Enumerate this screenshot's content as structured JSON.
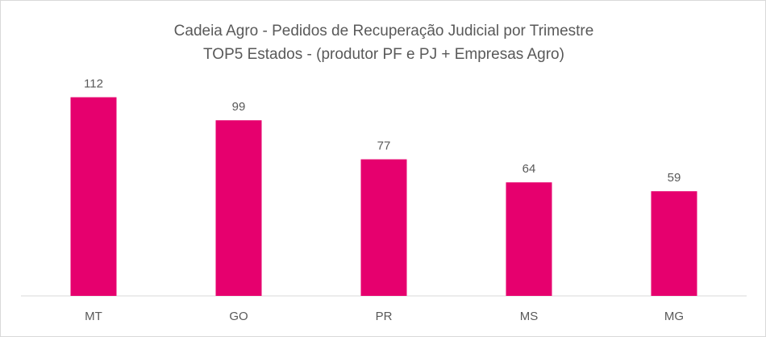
{
  "chart_data": {
    "type": "bar",
    "title": "Cadeia Agro - Pedidos de Recuperação Judicial por Trimestre",
    "subtitle": "TOP5 Estados - (produtor PF e PJ + Empresas Agro)",
    "categories": [
      "MT",
      "GO",
      "PR",
      "MS",
      "MG"
    ],
    "values": [
      112,
      99,
      77,
      64,
      59
    ],
    "data_labels": [
      "112",
      "99",
      "77",
      "64",
      "59"
    ],
    "xlabel": "",
    "ylabel": "",
    "ylim": [
      0,
      140
    ],
    "grid": false,
    "legend": "none",
    "bar_color": "#E6006E",
    "axis_color": "#d9d9d9"
  }
}
